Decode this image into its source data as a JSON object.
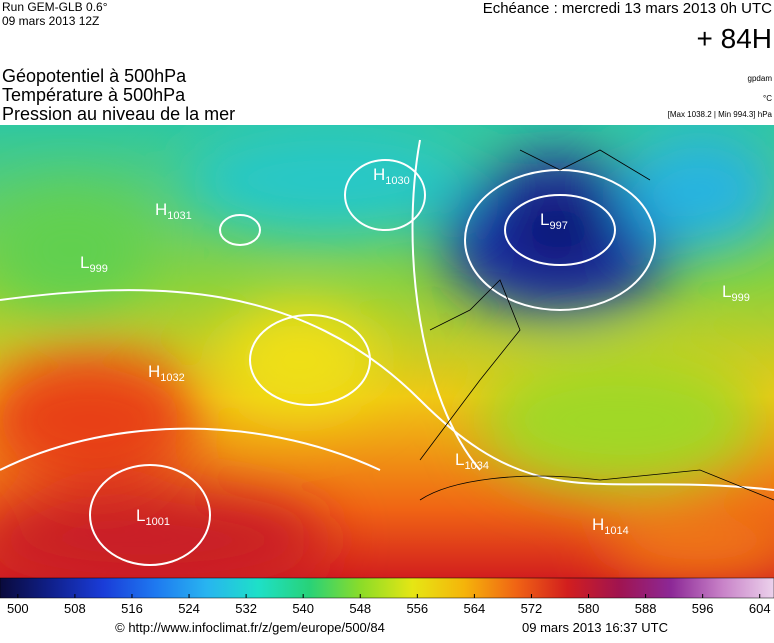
{
  "header": {
    "run": "Run GEM-GLB 0.6°",
    "run_date": "09 mars 2013 12Z",
    "echeance": "Echéance : mercredi 13 mars 2013 0h UTC",
    "lead": "+ 84H"
  },
  "fields": [
    "Géopotentiel à 500hPa",
    "Température à 500hPa",
    "Pression au niveau de la mer"
  ],
  "units": [
    "gpdam",
    "°C",
    "[Max 1038.2 | Min 994.3] hPa"
  ],
  "pressure_centers": [
    {
      "letter": "H",
      "value": 1031
    },
    {
      "letter": "H",
      "value": 1030
    },
    {
      "letter": "L",
      "value": 999
    },
    {
      "letter": "L",
      "value": 997
    },
    {
      "letter": "H",
      "value": 1032
    },
    {
      "letter": "L",
      "value": 999
    },
    {
      "letter": "L",
      "value": 1001
    },
    {
      "letter": "H",
      "value": 1014
    },
    {
      "letter": "L",
      "value": 1034
    }
  ],
  "colorbar": {
    "lim": [
      497.5,
      606
    ],
    "ticks": [
      500,
      508,
      516,
      524,
      532,
      540,
      548,
      556,
      564,
      572,
      580,
      588,
      596,
      604
    ],
    "colors": [
      "#0a0a3c",
      "#10208c",
      "#1a3cd8",
      "#1e78f0",
      "#28b4f0",
      "#1ee0c8",
      "#28d278",
      "#8cdc28",
      "#e6e614",
      "#f5b40a",
      "#f06414",
      "#d21e1e",
      "#a01450",
      "#8c2896",
      "#c882c8",
      "#ecd2ec"
    ]
  },
  "footer": {
    "source": "© http://www.infoclimat.fr/z/gem/europe/500/84",
    "generated": "09 mars 2013 16:37 UTC"
  }
}
